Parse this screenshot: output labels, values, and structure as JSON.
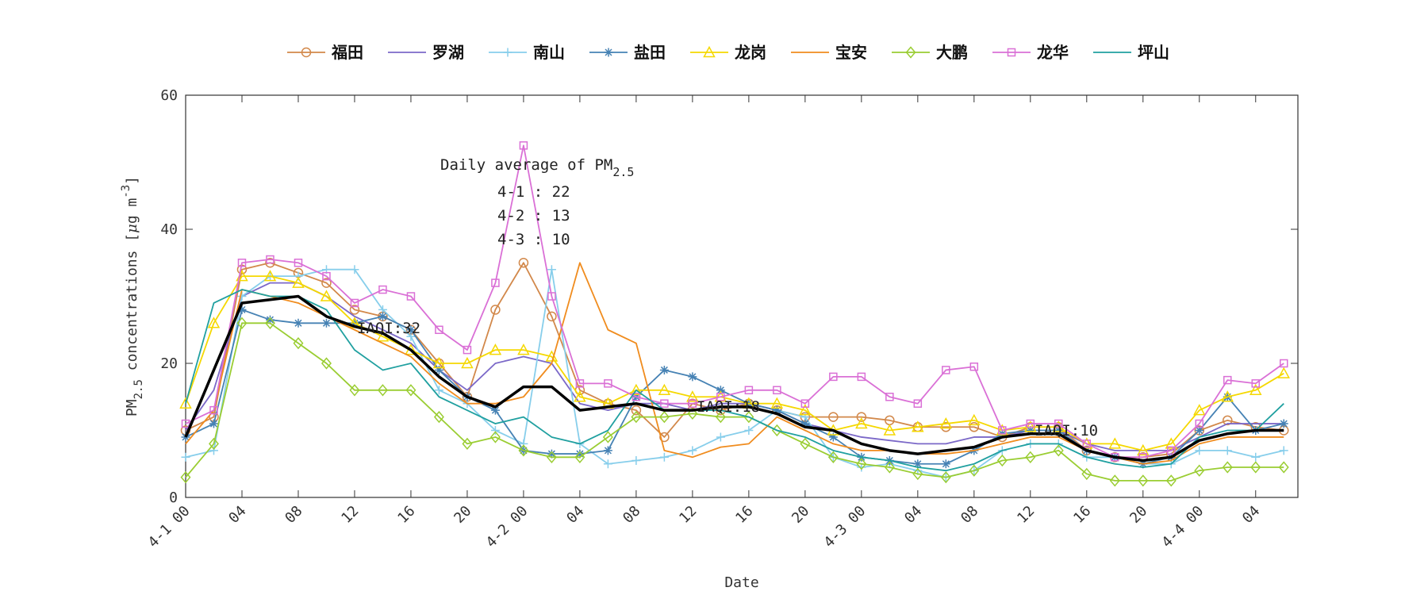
{
  "chart_data": {
    "type": "line",
    "xlabel": "Date",
    "ylabel_parts": [
      "PM",
      "2.5",
      " concentrations [",
      "μ",
      "g m",
      "-3",
      "]"
    ],
    "annotation": {
      "title": "Daily average of PM",
      "title_sub": "2.5",
      "lines": [
        "4-1 : 22",
        "4-2 : 13",
        "4-3 : 10"
      ]
    },
    "iaqi_labels": [
      "IAQI:32",
      "IAQI:18",
      "IAQI:10"
    ],
    "xlim": [
      0,
      79
    ],
    "ylim": [
      0,
      60
    ],
    "yticks": [
      0,
      20,
      40,
      60
    ],
    "xticks": [
      {
        "value": 0,
        "label": "4-1 00"
      },
      {
        "value": 4,
        "label": "04"
      },
      {
        "value": 8,
        "label": "08"
      },
      {
        "value": 12,
        "label": "12"
      },
      {
        "value": 16,
        "label": "16"
      },
      {
        "value": 20,
        "label": "20"
      },
      {
        "value": 24,
        "label": "4-2 00"
      },
      {
        "value": 28,
        "label": "04"
      },
      {
        "value": 32,
        "label": "08"
      },
      {
        "value": 36,
        "label": "12"
      },
      {
        "value": 40,
        "label": "16"
      },
      {
        "value": 44,
        "label": "20"
      },
      {
        "value": 48,
        "label": "4-3 00"
      },
      {
        "value": 52,
        "label": "04"
      },
      {
        "value": 56,
        "label": "08"
      },
      {
        "value": 60,
        "label": "12"
      },
      {
        "value": 64,
        "label": "16"
      },
      {
        "value": 68,
        "label": "20"
      },
      {
        "value": 72,
        "label": "4-4 00"
      },
      {
        "value": 76,
        "label": "04"
      }
    ],
    "x": [
      0,
      2,
      4,
      6,
      8,
      10,
      12,
      14,
      16,
      18,
      20,
      22,
      24,
      26,
      28,
      30,
      32,
      34,
      36,
      38,
      40,
      42,
      44,
      46,
      48,
      50,
      52,
      54,
      56,
      58,
      60,
      62,
      64,
      66,
      68,
      70,
      72,
      74,
      76,
      78
    ],
    "series": [
      {
        "name": "福田",
        "color": "#d2884a",
        "marker": "circle",
        "values": [
          10,
          12,
          34,
          35,
          33.5,
          32,
          28,
          27,
          25,
          20,
          15,
          28,
          35,
          27,
          16,
          14,
          13,
          9,
          14,
          13,
          14,
          13,
          12,
          12,
          12,
          11.5,
          10.5,
          10.5,
          10.5,
          9,
          10.5,
          10.5,
          7,
          6,
          6,
          6.5,
          10,
          11.5,
          10.5,
          10
        ]
      },
      {
        "name": "罗湖",
        "color": "#7b68c8",
        "marker": "none",
        "values": [
          10,
          16,
          30,
          32,
          32,
          30,
          27,
          25,
          23,
          19,
          16,
          20,
          21,
          20,
          14,
          13,
          14,
          14,
          13,
          14,
          14,
          13,
          11,
          10,
          9,
          8.5,
          8,
          8,
          9,
          9,
          10,
          10,
          8,
          7,
          7,
          7,
          9,
          11,
          11,
          11
        ]
      },
      {
        "name": "南山",
        "color": "#87ceeb",
        "marker": "plus",
        "values": [
          6,
          7,
          30,
          33,
          33,
          34,
          34,
          28,
          24,
          16,
          14,
          10,
          8,
          34,
          8,
          5,
          5.5,
          6,
          7,
          9,
          10,
          13,
          12,
          6,
          4.5,
          5,
          4,
          3,
          4,
          7,
          8,
          8,
          6,
          6,
          5,
          5,
          7,
          7,
          6,
          7
        ]
      },
      {
        "name": "盐田",
        "color": "#4682b4",
        "marker": "star",
        "values": [
          9,
          11,
          28,
          26.5,
          26,
          26,
          26,
          27,
          25,
          19,
          15,
          13,
          7,
          6.5,
          6.5,
          7,
          15,
          19,
          18,
          16,
          14,
          13,
          11,
          9,
          6,
          5.5,
          5,
          5,
          7,
          9.5,
          10,
          10,
          7,
          6,
          5,
          6,
          10,
          15,
          10,
          11
        ]
      },
      {
        "name": "龙岗",
        "color": "#f5d800",
        "marker": "triangle",
        "values": [
          14,
          26,
          33,
          33,
          32,
          30,
          26,
          24,
          22,
          20,
          20,
          22,
          22,
          21,
          15,
          14,
          16,
          16,
          15,
          15,
          14,
          14,
          13,
          10,
          11,
          10,
          10.5,
          11,
          11.5,
          10,
          10.5,
          10.5,
          8,
          8,
          7,
          8,
          13,
          15,
          16,
          18.5
        ]
      },
      {
        "name": "宝安",
        "color": "#f08c1e",
        "marker": "none",
        "values": [
          8,
          13,
          31,
          30,
          29,
          27,
          25,
          23,
          21,
          17,
          14,
          14,
          15,
          20,
          35,
          25,
          23,
          7,
          6,
          7.5,
          8,
          12,
          10,
          8,
          7,
          7,
          6.5,
          6.5,
          7,
          8,
          9,
          9,
          7,
          6,
          5,
          5.5,
          8,
          9,
          9,
          9
        ]
      },
      {
        "name": "大鹏",
        "color": "#9acd32",
        "marker": "diamond",
        "values": [
          3,
          8,
          26,
          26,
          23,
          20,
          16,
          16,
          16,
          12,
          8,
          9,
          7,
          6,
          6,
          9,
          12,
          12,
          12.5,
          12,
          12,
          10,
          8,
          6,
          5,
          4.5,
          3.5,
          3,
          4,
          5.5,
          6,
          7,
          3.5,
          2.5,
          2.5,
          2.5,
          4,
          4.5,
          4.5,
          4.5
        ]
      },
      {
        "name": "龙华",
        "color": "#da70d6",
        "marker": "square",
        "values": [
          11,
          13,
          35,
          35.5,
          35,
          33,
          29,
          31,
          30,
          25,
          22,
          32,
          52.5,
          30,
          17,
          17,
          15,
          14,
          14,
          15,
          16,
          16,
          14,
          18,
          18,
          15,
          14,
          19,
          19.5,
          10,
          11,
          11,
          8,
          6,
          6,
          7,
          11,
          17.5,
          17,
          20
        ]
      },
      {
        "name": "坪山",
        "color": "#20a0a0",
        "marker": "none",
        "values": [
          14,
          29,
          31,
          30,
          30,
          28,
          22,
          19,
          20,
          15,
          13,
          11,
          12,
          9,
          8,
          10,
          16,
          13,
          13,
          13,
          12,
          10,
          9,
          7,
          6,
          5.5,
          4.5,
          4,
          5,
          7,
          8,
          8,
          6,
          5,
          4.5,
          5,
          9,
          10,
          10,
          14
        ]
      }
    ],
    "average_line": {
      "color": "#000000",
      "values": [
        9,
        19,
        29,
        29.5,
        30,
        27,
        25.5,
        24.5,
        22,
        18,
        15,
        13.5,
        16.5,
        16.5,
        13,
        13.5,
        14,
        13,
        13,
        13.5,
        13.5,
        12.5,
        10.5,
        10,
        8,
        7,
        6.5,
        7,
        7.5,
        9,
        9.5,
        9.5,
        7,
        6,
        5.5,
        6,
        8.5,
        9.5,
        10,
        10
      ]
    }
  }
}
